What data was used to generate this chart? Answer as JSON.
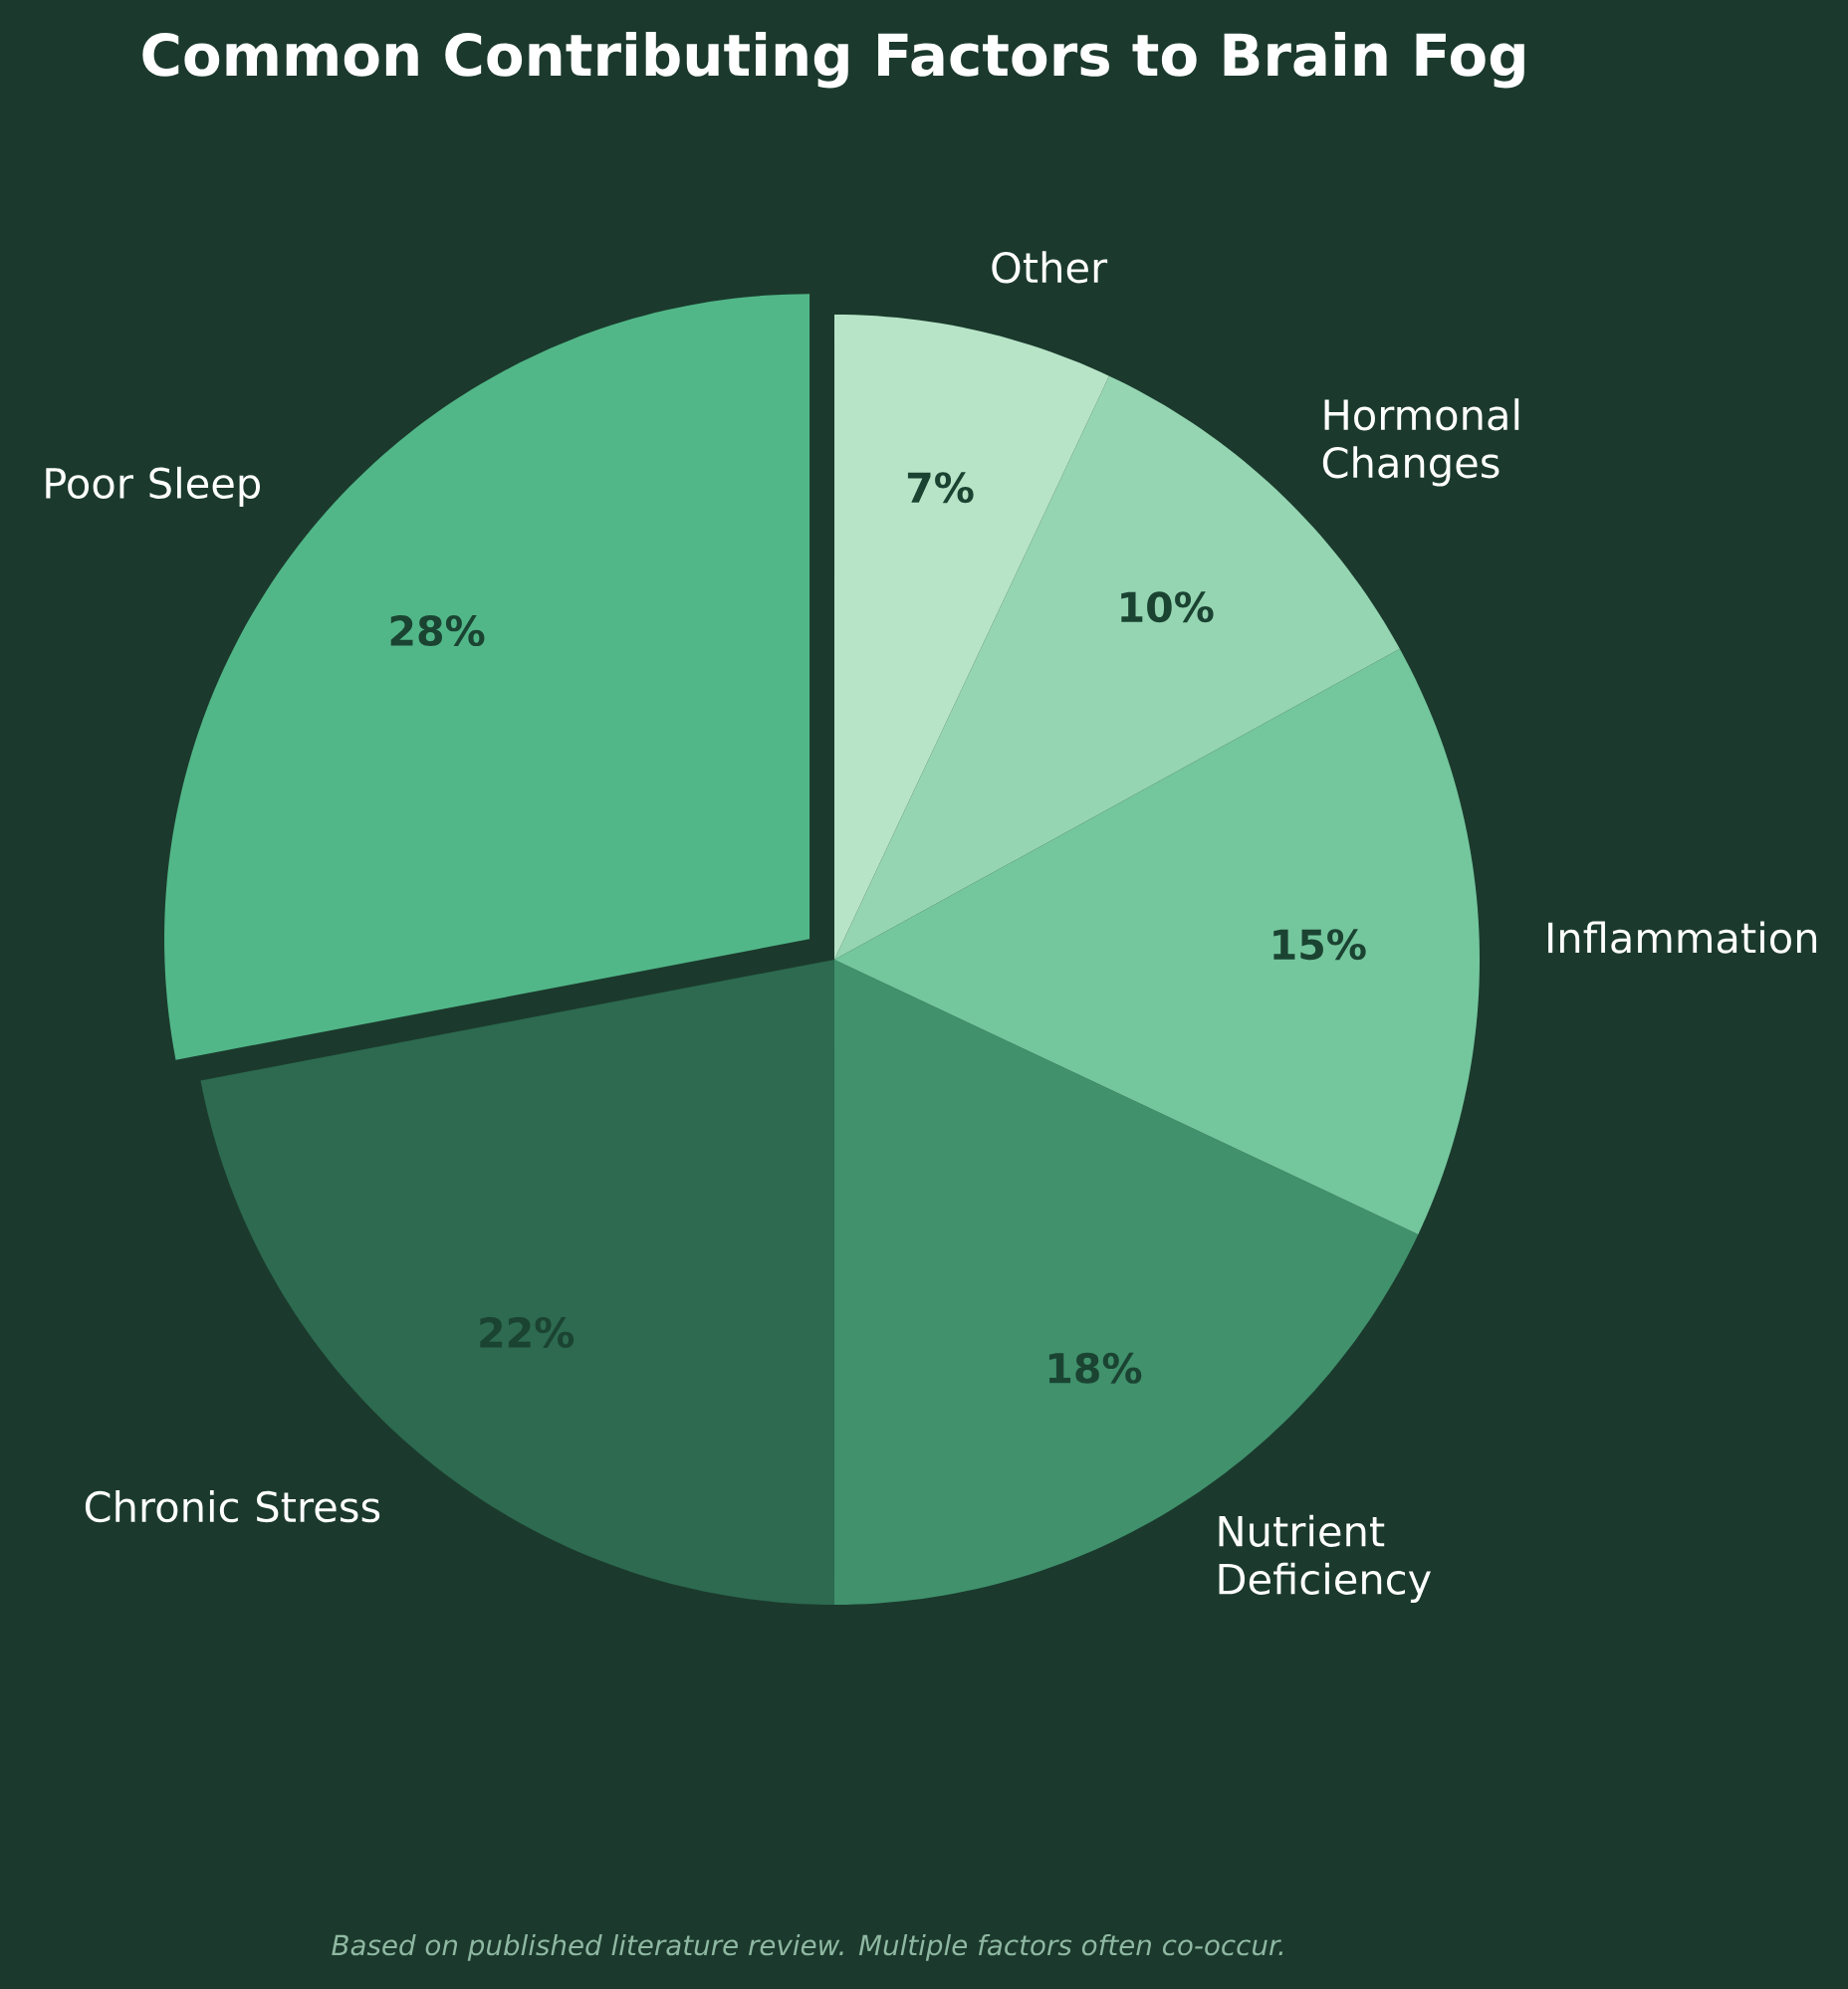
{
  "chart_data": {
    "type": "pie",
    "title": "Common Contributing Factors to Brain Fog",
    "categories": [
      "Poor Sleep",
      "Chronic Stress",
      "Nutrient Deficiency",
      "Inflammation",
      "Hormonal Changes",
      "Other"
    ],
    "values": [
      28,
      22,
      18,
      15,
      10,
      7
    ],
    "colors": [
      "#52b788",
      "#2d6a4f",
      "#40916c",
      "#74c69d",
      "#95d5b2",
      "#b7e4c7"
    ],
    "value_labels": [
      "28%",
      "22%",
      "18%",
      "15%",
      "10%",
      "7%"
    ],
    "annotations": [
      "Based on published literature review. Multiple factors often co-occur."
    ]
  }
}
